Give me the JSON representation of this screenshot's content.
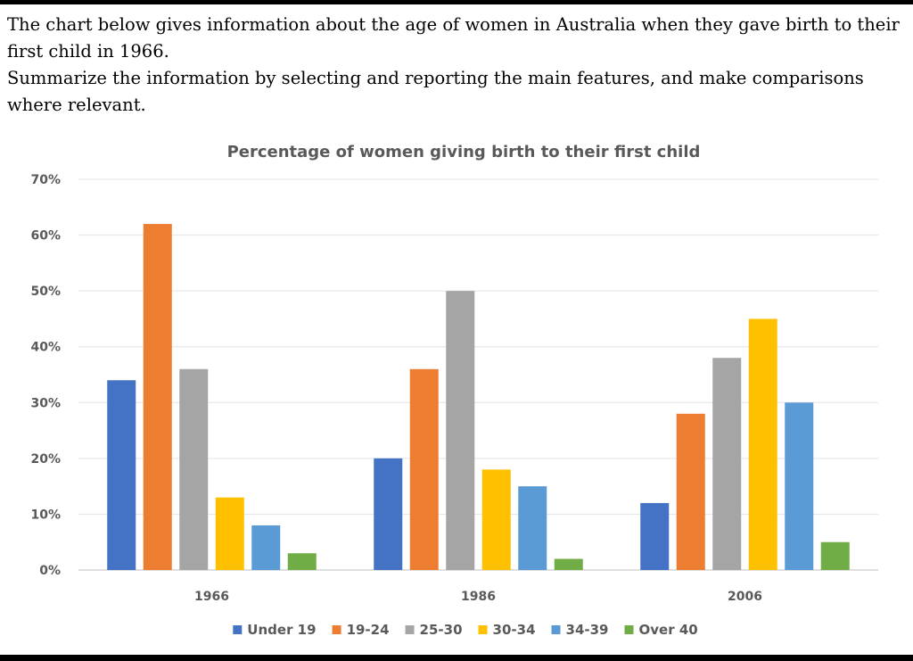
{
  "prompt": {
    "line1": "The chart below gives information about the age of women in Australia when they gave birth to their first child in 1966.",
    "line2": "Summarize the information by selecting and reporting the main features, and make comparisons where relevant."
  },
  "chart_data": {
    "type": "bar",
    "title": "Percentage of women giving birth to their first child",
    "xlabel": "",
    "ylabel": "",
    "categories": [
      "1966",
      "1986",
      "2006"
    ],
    "ylim": [
      0,
      70
    ],
    "yticks": [
      "0%",
      "10%",
      "20%",
      "30%",
      "40%",
      "50%",
      "60%",
      "70%"
    ],
    "grid": true,
    "legend_position": "bottom",
    "series": [
      {
        "name": "Under 19",
        "color": "#4472C4",
        "values": [
          34,
          20,
          12
        ]
      },
      {
        "name": "19-24",
        "color": "#ED7D31",
        "values": [
          62,
          36,
          28
        ]
      },
      {
        "name": "25-30",
        "color": "#A5A5A5",
        "values": [
          36,
          50,
          38
        ]
      },
      {
        "name": "30-34",
        "color": "#FFC000",
        "values": [
          13,
          18,
          45
        ]
      },
      {
        "name": "34-39",
        "color": "#5B9BD5",
        "values": [
          8,
          15,
          30
        ]
      },
      {
        "name": "Over 40",
        "color": "#70AD47",
        "values": [
          3,
          2,
          5
        ]
      }
    ]
  }
}
